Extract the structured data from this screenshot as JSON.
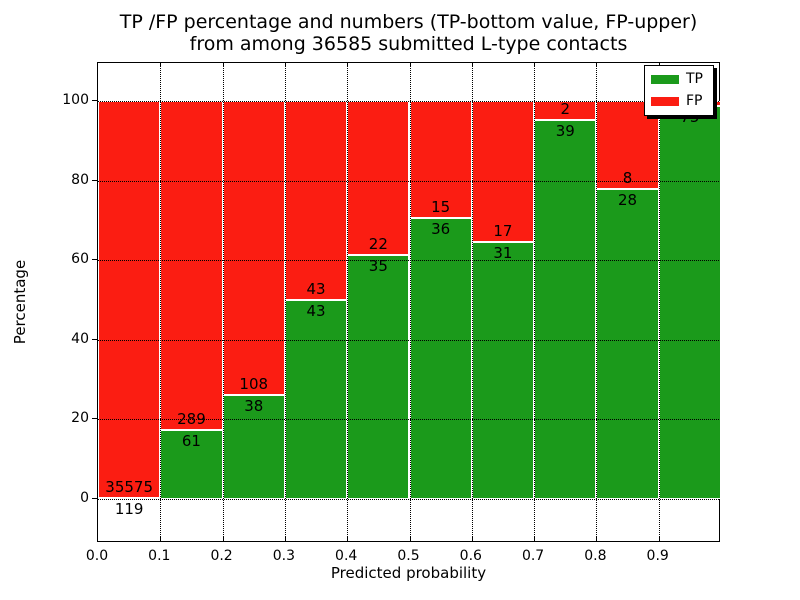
{
  "title": {
    "line1": "TP /FP percentage and numbers (TP-bottom value, FP-upper)",
    "line2": "from among 36585 submitted L-type contacts"
  },
  "axes": {
    "xlabel": "Predicted probability",
    "ylabel": "Percentage",
    "yticks": [
      "0",
      "20",
      "40",
      "60",
      "80",
      "100"
    ],
    "xticks": [
      "0.0",
      "0.1",
      "0.2",
      "0.3",
      "0.4",
      "0.5",
      "0.6",
      "0.7",
      "0.8",
      "0.9"
    ]
  },
  "legend": {
    "items": [
      {
        "label": "TP",
        "color": "#1b9a1b"
      },
      {
        "label": "FP",
        "color": "#fb1d12"
      }
    ]
  },
  "chart_data": {
    "type": "bar",
    "stacked": true,
    "title": "TP /FP percentage and numbers (TP-bottom value, FP-upper) from among 36585 submitted L-type contacts",
    "xlabel": "Predicted probability",
    "ylabel": "Percentage",
    "x_bin_edges": [
      0.0,
      0.1,
      0.2,
      0.3,
      0.4,
      0.5,
      0.6,
      0.7,
      0.8,
      0.9,
      1.0
    ],
    "categories": [
      "0.0-0.1",
      "0.1-0.2",
      "0.2-0.3",
      "0.3-0.4",
      "0.4-0.5",
      "0.5-0.6",
      "0.6-0.7",
      "0.7-0.8",
      "0.8-0.9",
      "0.9-1.0"
    ],
    "yticks": [
      0,
      20,
      40,
      60,
      80,
      100
    ],
    "ylim_display": [
      0,
      100
    ],
    "grid": "dotted",
    "legend_position": "upper right",
    "series": [
      {
        "name": "TP",
        "color": "#1b9a1b",
        "counts": [
          119,
          61,
          38,
          43,
          35,
          36,
          31,
          39,
          28,
          75
        ],
        "pct": [
          0.33,
          17.43,
          26.03,
          50.0,
          61.4,
          70.59,
          64.58,
          95.12,
          77.78,
          98.68
        ]
      },
      {
        "name": "FP",
        "color": "#fb1d12",
        "counts": [
          35575,
          289,
          108,
          43,
          22,
          15,
          17,
          2,
          8,
          null
        ],
        "pct": [
          99.67,
          82.57,
          73.97,
          50.0,
          38.6,
          29.41,
          35.42,
          4.88,
          22.22,
          1.32
        ]
      }
    ],
    "bar_value_labels": {
      "fp": [
        "35575",
        "289",
        "108",
        "43",
        "22",
        "15",
        "17",
        "2",
        "8",
        null
      ],
      "tp": [
        "119",
        "61",
        "38",
        "43",
        "35",
        "36",
        "31",
        "39",
        "28",
        "75"
      ]
    }
  }
}
